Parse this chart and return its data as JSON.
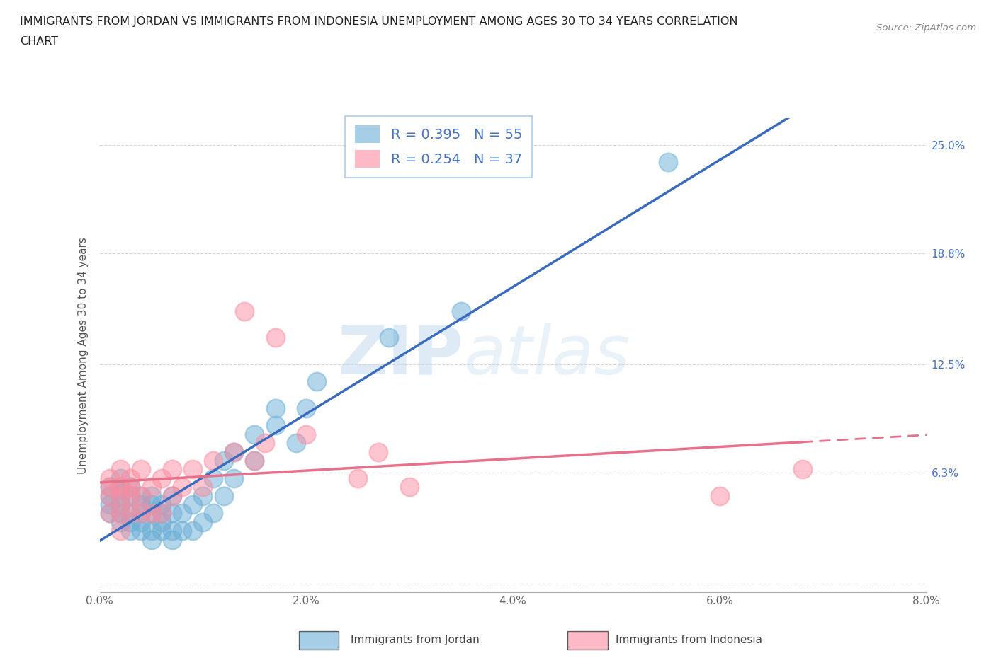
{
  "title_line1": "IMMIGRANTS FROM JORDAN VS IMMIGRANTS FROM INDONESIA UNEMPLOYMENT AMONG AGES 30 TO 34 YEARS CORRELATION",
  "title_line2": "CHART",
  "source": "Source: ZipAtlas.com",
  "ylabel": "Unemployment Among Ages 30 to 34 years",
  "jordan_color": "#6baed6",
  "indonesia_color": "#fc8da0",
  "jordan_R": 0.395,
  "jordan_N": 55,
  "indonesia_R": 0.254,
  "indonesia_N": 37,
  "xlim": [
    0.0,
    0.08
  ],
  "ylim": [
    -0.005,
    0.265
  ],
  "xtick_labels": [
    "0.0%",
    "",
    "2.0%",
    "",
    "4.0%",
    "",
    "6.0%",
    "",
    "8.0%"
  ],
  "xtick_values": [
    0.0,
    0.01,
    0.02,
    0.03,
    0.04,
    0.05,
    0.06,
    0.07,
    0.08
  ],
  "ytick_labels": [
    "",
    "6.3%",
    "12.5%",
    "18.8%",
    "25.0%"
  ],
  "ytick_values": [
    0.0,
    0.063,
    0.125,
    0.188,
    0.25
  ],
  "jordan_x": [
    0.001,
    0.001,
    0.001,
    0.001,
    0.002,
    0.002,
    0.002,
    0.002,
    0.002,
    0.002,
    0.003,
    0.003,
    0.003,
    0.003,
    0.003,
    0.004,
    0.004,
    0.004,
    0.004,
    0.004,
    0.005,
    0.005,
    0.005,
    0.005,
    0.005,
    0.006,
    0.006,
    0.006,
    0.006,
    0.007,
    0.007,
    0.007,
    0.007,
    0.008,
    0.008,
    0.009,
    0.009,
    0.01,
    0.01,
    0.011,
    0.011,
    0.012,
    0.012,
    0.013,
    0.013,
    0.015,
    0.015,
    0.017,
    0.017,
    0.019,
    0.02,
    0.021,
    0.028,
    0.035,
    0.055
  ],
  "jordan_y": [
    0.04,
    0.045,
    0.05,
    0.055,
    0.035,
    0.04,
    0.045,
    0.05,
    0.055,
    0.06,
    0.03,
    0.035,
    0.04,
    0.05,
    0.055,
    0.03,
    0.035,
    0.04,
    0.045,
    0.05,
    0.025,
    0.03,
    0.04,
    0.045,
    0.05,
    0.03,
    0.035,
    0.04,
    0.045,
    0.025,
    0.03,
    0.04,
    0.05,
    0.03,
    0.04,
    0.03,
    0.045,
    0.035,
    0.05,
    0.04,
    0.06,
    0.05,
    0.07,
    0.06,
    0.075,
    0.07,
    0.085,
    0.09,
    0.1,
    0.08,
    0.1,
    0.115,
    0.14,
    0.155,
    0.24
  ],
  "indonesia_x": [
    0.001,
    0.001,
    0.001,
    0.001,
    0.002,
    0.002,
    0.002,
    0.002,
    0.002,
    0.003,
    0.003,
    0.003,
    0.003,
    0.004,
    0.004,
    0.004,
    0.005,
    0.005,
    0.006,
    0.006,
    0.007,
    0.007,
    0.008,
    0.009,
    0.01,
    0.011,
    0.013,
    0.014,
    0.015,
    0.016,
    0.017,
    0.02,
    0.025,
    0.027,
    0.03,
    0.06,
    0.068
  ],
  "indonesia_y": [
    0.04,
    0.05,
    0.055,
    0.06,
    0.03,
    0.04,
    0.05,
    0.055,
    0.065,
    0.04,
    0.05,
    0.055,
    0.06,
    0.04,
    0.05,
    0.065,
    0.04,
    0.055,
    0.04,
    0.06,
    0.05,
    0.065,
    0.055,
    0.065,
    0.055,
    0.07,
    0.075,
    0.155,
    0.07,
    0.08,
    0.14,
    0.085,
    0.06,
    0.075,
    0.055,
    0.05,
    0.065
  ],
  "watermark_zip": "ZIP",
  "watermark_atlas": "atlas",
  "background_color": "#ffffff",
  "grid_color": "#cccccc",
  "right_ytick_color": "#4472c4",
  "legend_label_color": "#4472c4"
}
